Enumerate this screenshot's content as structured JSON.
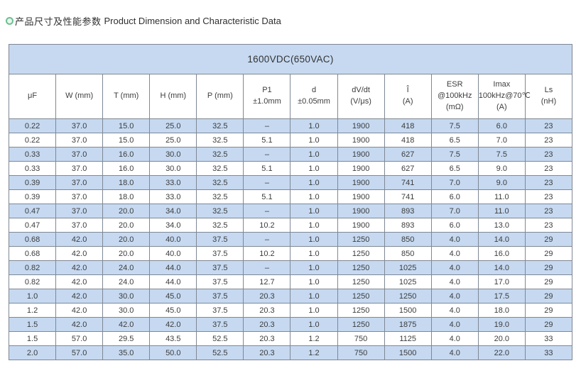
{
  "section": {
    "icon": "ring-icon",
    "title_zh": "产品尺寸及性能参数",
    "title_en": "Product Dimension and Characteristic Data"
  },
  "table": {
    "title": "1600VDC(650VAC)",
    "columns": [
      [
        "μF"
      ],
      [
        "W (mm)"
      ],
      [
        "T (mm)"
      ],
      [
        "H (mm)"
      ],
      [
        "P (mm)"
      ],
      [
        "P1",
        "±1.0mm"
      ],
      [
        "d",
        "±0.05mm"
      ],
      [
        "dV/dt",
        "(V/μs)"
      ],
      [
        "Î",
        "(A)"
      ],
      [
        "ESR",
        "@100kHz",
        "(mΩ)"
      ],
      [
        "Imax",
        "100kHz@70℃",
        "(A)"
      ],
      [
        "Ls",
        "(nH)"
      ]
    ],
    "rows": [
      [
        "0.22",
        "37.0",
        "15.0",
        "25.0",
        "32.5",
        "–",
        "1.0",
        "1900",
        "418",
        "7.5",
        "6.0",
        "23"
      ],
      [
        "0.22",
        "37.0",
        "15.0",
        "25.0",
        "32.5",
        "5.1",
        "1.0",
        "1900",
        "418",
        "6.5",
        "7.0",
        "23"
      ],
      [
        "0.33",
        "37.0",
        "16.0",
        "30.0",
        "32.5",
        "–",
        "1.0",
        "1900",
        "627",
        "7.5",
        "7.5",
        "23"
      ],
      [
        "0.33",
        "37.0",
        "16.0",
        "30.0",
        "32.5",
        "5.1",
        "1.0",
        "1900",
        "627",
        "6.5",
        "9.0",
        "23"
      ],
      [
        "0.39",
        "37.0",
        "18.0",
        "33.0",
        "32.5",
        "–",
        "1.0",
        "1900",
        "741",
        "7.0",
        "9.0",
        "23"
      ],
      [
        "0.39",
        "37.0",
        "18.0",
        "33.0",
        "32.5",
        "5.1",
        "1.0",
        "1900",
        "741",
        "6.0",
        "11.0",
        "23"
      ],
      [
        "0.47",
        "37.0",
        "20.0",
        "34.0",
        "32.5",
        "–",
        "1.0",
        "1900",
        "893",
        "7.0",
        "11.0",
        "23"
      ],
      [
        "0.47",
        "37.0",
        "20.0",
        "34.0",
        "32.5",
        "10.2",
        "1.0",
        "1900",
        "893",
        "6.0",
        "13.0",
        "23"
      ],
      [
        "0.68",
        "42.0",
        "20.0",
        "40.0",
        "37.5",
        "–",
        "1.0",
        "1250",
        "850",
        "4.0",
        "14.0",
        "29"
      ],
      [
        "0.68",
        "42.0",
        "20.0",
        "40.0",
        "37.5",
        "10.2",
        "1.0",
        "1250",
        "850",
        "4.0",
        "16.0",
        "29"
      ],
      [
        "0.82",
        "42.0",
        "24.0",
        "44.0",
        "37.5",
        "–",
        "1.0",
        "1250",
        "1025",
        "4.0",
        "14.0",
        "29"
      ],
      [
        "0.82",
        "42.0",
        "24.0",
        "44.0",
        "37.5",
        "12.7",
        "1.0",
        "1250",
        "1025",
        "4.0",
        "17.0",
        "29"
      ],
      [
        "1.0",
        "42.0",
        "30.0",
        "45.0",
        "37.5",
        "20.3",
        "1.0",
        "1250",
        "1250",
        "4.0",
        "17.5",
        "29"
      ],
      [
        "1.2",
        "42.0",
        "30.0",
        "45.0",
        "37.5",
        "20.3",
        "1.0",
        "1250",
        "1500",
        "4.0",
        "18.0",
        "29"
      ],
      [
        "1.5",
        "42.0",
        "42.0",
        "42.0",
        "37.5",
        "20.3",
        "1.0",
        "1250",
        "1875",
        "4.0",
        "19.0",
        "29"
      ],
      [
        "1.5",
        "57.0",
        "29.5",
        "43.5",
        "52.5",
        "20.3",
        "1.2",
        "750",
        "1125",
        "4.0",
        "20.0",
        "33"
      ],
      [
        "2.0",
        "57.0",
        "35.0",
        "50.0",
        "52.5",
        "20.3",
        "1.2",
        "750",
        "1500",
        "4.0",
        "22.0",
        "33"
      ]
    ]
  },
  "colors": {
    "stripe_blue": "#c6d9f1",
    "title_band_blue": "#c6d9f1",
    "border_gray": "#7f8894",
    "accent_green": "#6cc092",
    "text": "#3c3c3c"
  }
}
